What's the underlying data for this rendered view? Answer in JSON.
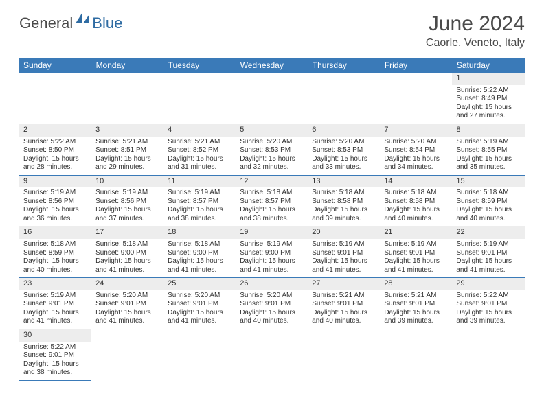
{
  "logo": {
    "general": "General",
    "blue": "Blue"
  },
  "title": "June 2024",
  "location": "Caorle, Veneto, Italy",
  "colors": {
    "header_bg": "#3a7ab8",
    "header_text": "#ffffff",
    "daynum_bg": "#ededed",
    "cell_border": "#3a7ab8",
    "body_text": "#333333",
    "logo_gray": "#4a4a4a",
    "logo_blue": "#2f6ca3"
  },
  "fonts": {
    "title_size_pt": 22,
    "location_size_pt": 12,
    "dayheader_size_pt": 9,
    "cell_size_pt": 7.5
  },
  "day_headers": [
    "Sunday",
    "Monday",
    "Tuesday",
    "Wednesday",
    "Thursday",
    "Friday",
    "Saturday"
  ],
  "weeks": [
    {
      "nums": [
        "",
        "",
        "",
        "",
        "",
        "",
        "1"
      ],
      "cells": [
        null,
        null,
        null,
        null,
        null,
        null,
        {
          "sunrise": "Sunrise: 5:22 AM",
          "sunset": "Sunset: 8:49 PM",
          "d1": "Daylight: 15 hours",
          "d2": "and 27 minutes."
        }
      ]
    },
    {
      "nums": [
        "2",
        "3",
        "4",
        "5",
        "6",
        "7",
        "8"
      ],
      "cells": [
        {
          "sunrise": "Sunrise: 5:22 AM",
          "sunset": "Sunset: 8:50 PM",
          "d1": "Daylight: 15 hours",
          "d2": "and 28 minutes."
        },
        {
          "sunrise": "Sunrise: 5:21 AM",
          "sunset": "Sunset: 8:51 PM",
          "d1": "Daylight: 15 hours",
          "d2": "and 29 minutes."
        },
        {
          "sunrise": "Sunrise: 5:21 AM",
          "sunset": "Sunset: 8:52 PM",
          "d1": "Daylight: 15 hours",
          "d2": "and 31 minutes."
        },
        {
          "sunrise": "Sunrise: 5:20 AM",
          "sunset": "Sunset: 8:53 PM",
          "d1": "Daylight: 15 hours",
          "d2": "and 32 minutes."
        },
        {
          "sunrise": "Sunrise: 5:20 AM",
          "sunset": "Sunset: 8:53 PM",
          "d1": "Daylight: 15 hours",
          "d2": "and 33 minutes."
        },
        {
          "sunrise": "Sunrise: 5:20 AM",
          "sunset": "Sunset: 8:54 PM",
          "d1": "Daylight: 15 hours",
          "d2": "and 34 minutes."
        },
        {
          "sunrise": "Sunrise: 5:19 AM",
          "sunset": "Sunset: 8:55 PM",
          "d1": "Daylight: 15 hours",
          "d2": "and 35 minutes."
        }
      ]
    },
    {
      "nums": [
        "9",
        "10",
        "11",
        "12",
        "13",
        "14",
        "15"
      ],
      "cells": [
        {
          "sunrise": "Sunrise: 5:19 AM",
          "sunset": "Sunset: 8:56 PM",
          "d1": "Daylight: 15 hours",
          "d2": "and 36 minutes."
        },
        {
          "sunrise": "Sunrise: 5:19 AM",
          "sunset": "Sunset: 8:56 PM",
          "d1": "Daylight: 15 hours",
          "d2": "and 37 minutes."
        },
        {
          "sunrise": "Sunrise: 5:19 AM",
          "sunset": "Sunset: 8:57 PM",
          "d1": "Daylight: 15 hours",
          "d2": "and 38 minutes."
        },
        {
          "sunrise": "Sunrise: 5:18 AM",
          "sunset": "Sunset: 8:57 PM",
          "d1": "Daylight: 15 hours",
          "d2": "and 38 minutes."
        },
        {
          "sunrise": "Sunrise: 5:18 AM",
          "sunset": "Sunset: 8:58 PM",
          "d1": "Daylight: 15 hours",
          "d2": "and 39 minutes."
        },
        {
          "sunrise": "Sunrise: 5:18 AM",
          "sunset": "Sunset: 8:58 PM",
          "d1": "Daylight: 15 hours",
          "d2": "and 40 minutes."
        },
        {
          "sunrise": "Sunrise: 5:18 AM",
          "sunset": "Sunset: 8:59 PM",
          "d1": "Daylight: 15 hours",
          "d2": "and 40 minutes."
        }
      ]
    },
    {
      "nums": [
        "16",
        "17",
        "18",
        "19",
        "20",
        "21",
        "22"
      ],
      "cells": [
        {
          "sunrise": "Sunrise: 5:18 AM",
          "sunset": "Sunset: 8:59 PM",
          "d1": "Daylight: 15 hours",
          "d2": "and 40 minutes."
        },
        {
          "sunrise": "Sunrise: 5:18 AM",
          "sunset": "Sunset: 9:00 PM",
          "d1": "Daylight: 15 hours",
          "d2": "and 41 minutes."
        },
        {
          "sunrise": "Sunrise: 5:18 AM",
          "sunset": "Sunset: 9:00 PM",
          "d1": "Daylight: 15 hours",
          "d2": "and 41 minutes."
        },
        {
          "sunrise": "Sunrise: 5:19 AM",
          "sunset": "Sunset: 9:00 PM",
          "d1": "Daylight: 15 hours",
          "d2": "and 41 minutes."
        },
        {
          "sunrise": "Sunrise: 5:19 AM",
          "sunset": "Sunset: 9:01 PM",
          "d1": "Daylight: 15 hours",
          "d2": "and 41 minutes."
        },
        {
          "sunrise": "Sunrise: 5:19 AM",
          "sunset": "Sunset: 9:01 PM",
          "d1": "Daylight: 15 hours",
          "d2": "and 41 minutes."
        },
        {
          "sunrise": "Sunrise: 5:19 AM",
          "sunset": "Sunset: 9:01 PM",
          "d1": "Daylight: 15 hours",
          "d2": "and 41 minutes."
        }
      ]
    },
    {
      "nums": [
        "23",
        "24",
        "25",
        "26",
        "27",
        "28",
        "29"
      ],
      "cells": [
        {
          "sunrise": "Sunrise: 5:19 AM",
          "sunset": "Sunset: 9:01 PM",
          "d1": "Daylight: 15 hours",
          "d2": "and 41 minutes."
        },
        {
          "sunrise": "Sunrise: 5:20 AM",
          "sunset": "Sunset: 9:01 PM",
          "d1": "Daylight: 15 hours",
          "d2": "and 41 minutes."
        },
        {
          "sunrise": "Sunrise: 5:20 AM",
          "sunset": "Sunset: 9:01 PM",
          "d1": "Daylight: 15 hours",
          "d2": "and 41 minutes."
        },
        {
          "sunrise": "Sunrise: 5:20 AM",
          "sunset": "Sunset: 9:01 PM",
          "d1": "Daylight: 15 hours",
          "d2": "and 40 minutes."
        },
        {
          "sunrise": "Sunrise: 5:21 AM",
          "sunset": "Sunset: 9:01 PM",
          "d1": "Daylight: 15 hours",
          "d2": "and 40 minutes."
        },
        {
          "sunrise": "Sunrise: 5:21 AM",
          "sunset": "Sunset: 9:01 PM",
          "d1": "Daylight: 15 hours",
          "d2": "and 39 minutes."
        },
        {
          "sunrise": "Sunrise: 5:22 AM",
          "sunset": "Sunset: 9:01 PM",
          "d1": "Daylight: 15 hours",
          "d2": "and 39 minutes."
        }
      ]
    },
    {
      "nums": [
        "30",
        "",
        "",
        "",
        "",
        "",
        ""
      ],
      "cells": [
        {
          "sunrise": "Sunrise: 5:22 AM",
          "sunset": "Sunset: 9:01 PM",
          "d1": "Daylight: 15 hours",
          "d2": "and 38 minutes."
        },
        null,
        null,
        null,
        null,
        null,
        null
      ]
    }
  ]
}
